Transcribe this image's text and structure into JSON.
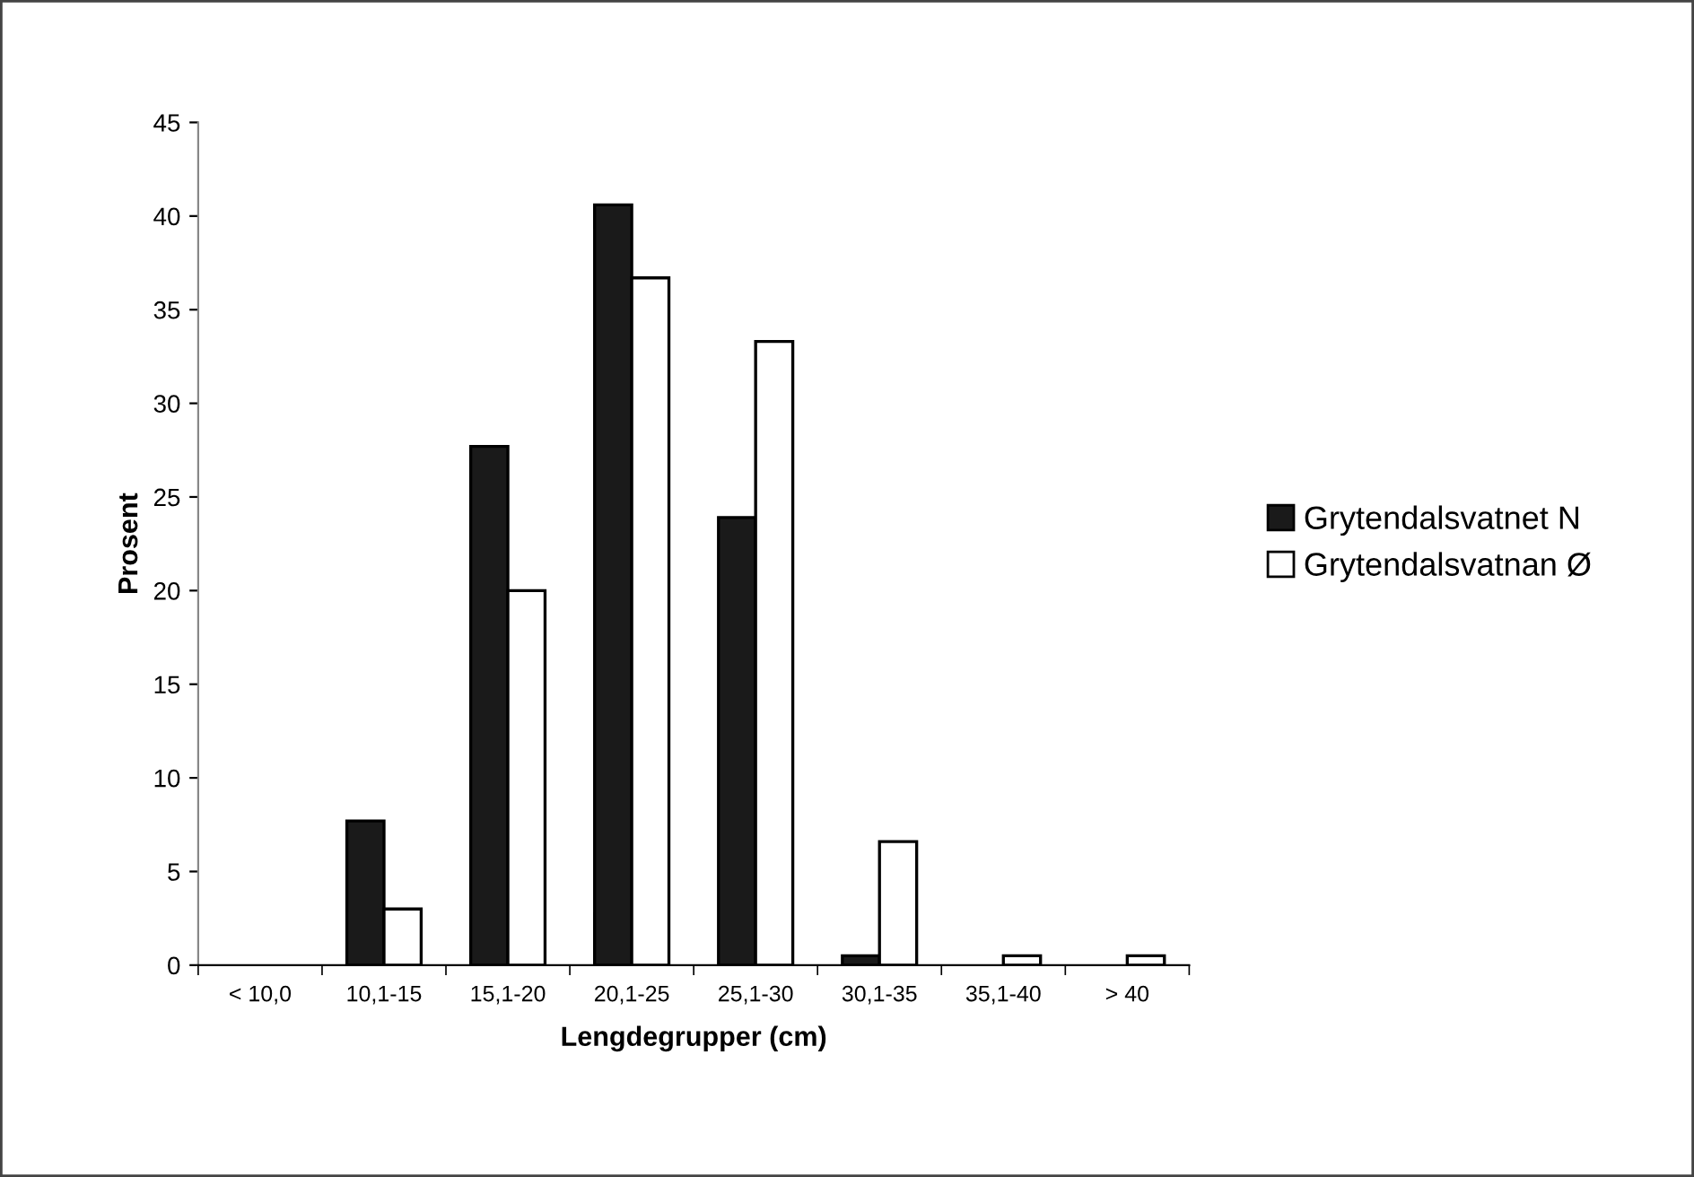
{
  "chart_data": {
    "type": "bar",
    "xlabel": "Lengdegrupper (cm)",
    "ylabel": "Prosent",
    "categories": [
      "< 10,0",
      "10,1-15",
      "15,1-20",
      "20,1-25",
      "25,1-30",
      "30,1-35",
      "35,1-40",
      "> 40"
    ],
    "series": [
      {
        "name": "Grytendalsvatnet N",
        "color": "#1a1a1a",
        "values": [
          null,
          7.7,
          27.7,
          40.6,
          23.9,
          0.5,
          null,
          null
        ]
      },
      {
        "name": "Grytendalsvatnan Ø",
        "color": "#ffffff",
        "values": [
          null,
          3,
          20,
          36.7,
          33.3,
          6.6,
          0.5,
          0.5
        ]
      }
    ],
    "ylim": [
      0,
      45
    ],
    "yticks": [
      0,
      5,
      10,
      15,
      20,
      25,
      30,
      35,
      40,
      45
    ],
    "grid": false,
    "legend": "right"
  }
}
